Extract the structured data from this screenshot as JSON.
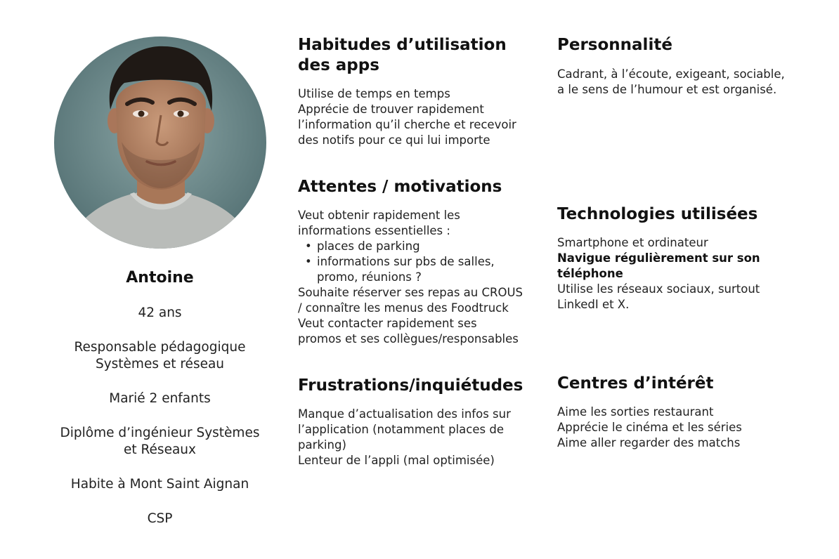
{
  "profile": {
    "name": "Antoine",
    "age": "42 ans",
    "job_line1": "Responsable pédagogique",
    "job_line2": "Systèmes et réseau",
    "family": "Marié 2 enfants",
    "degree_line1": "Diplôme d’ingénieur Systèmes",
    "degree_line2": "et Réseaux",
    "location": "Habite à Mont Saint Aignan",
    "csp": "CSP"
  },
  "app_habits": {
    "title_line1": "Habitudes d’utilisation",
    "title_line2": "des apps",
    "lines": [
      "Utilise de temps en temps",
      "Apprécie de trouver rapidement",
      "l’information qu’il cherche et recevoir",
      "des notifs pour ce qui lui importe"
    ]
  },
  "expectations": {
    "title": "Attentes / motivations",
    "intro_lines": [
      "Veut obtenir rapidement les",
      "informations essentielles :"
    ],
    "bullet1": "places de parking",
    "bullet2_line1": "informations sur pbs de salles,",
    "bullet2_line2": "promo, réunions ?",
    "bullet_glyph": "•",
    "outro_lines": [
      "Souhaite réserver ses repas au CROUS",
      "/ connaître les menus des Foodtruck",
      "Veut contacter rapidement ses",
      "promos et ses collègues/responsables"
    ]
  },
  "frustrations": {
    "title": "Frustrations/inquiétudes",
    "lines": [
      "Manque d’actualisation des infos sur",
      "l’application (notamment places de",
      "parking)",
      "Lenteur de l’appli (mal optimisée)"
    ]
  },
  "personality": {
    "title": "Personnalité",
    "lines": [
      "Cadrant, à l’écoute, exigeant, sociable,",
      "a le sens de l’humour et est organisé."
    ]
  },
  "technologies": {
    "title": "Technologies utilisées",
    "line1": "Smartphone et ordinateur",
    "bold_line1": "Navigue régulièrement sur son",
    "bold_line2": "téléphone",
    "line2": "Utilise les réseaux sociaux, surtout",
    "line3": "LinkedI et X."
  },
  "interests": {
    "title": "Centres d’intérêt",
    "lines": [
      "Aime les sorties restaurant",
      "Apprécie le cinéma et les séries",
      "Aime aller regarder des matchs"
    ]
  },
  "colors": {
    "text": "#222222",
    "heading": "#111111",
    "background": "#ffffff",
    "avatar_bg": "#5d7b7d",
    "shirt": "#b9bcb9",
    "skin": "#b98a6c",
    "hair": "#1f1915"
  }
}
